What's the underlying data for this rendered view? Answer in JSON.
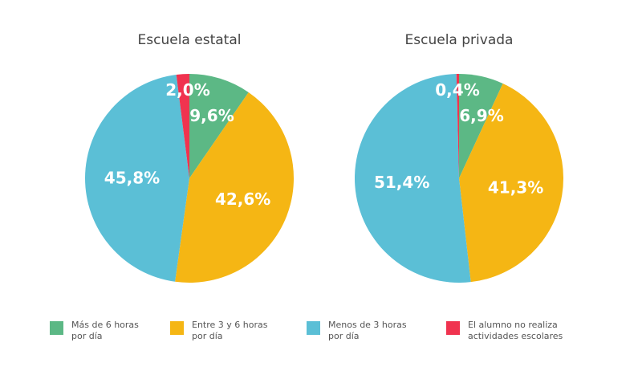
{
  "chart_data": {
    "type": "pie",
    "categories": [
      "Más de 6 horas por día",
      "Entre 3 y 6 horas por día",
      "Menos de 3 horas por día",
      "El alumno no realiza actividades escolares"
    ],
    "colors": [
      "#5cb885",
      "#f5b614",
      "#5bbfd6",
      "#f0334f"
    ],
    "charts": [
      {
        "title": "Escuela estatal",
        "values": [
          9.6,
          42.6,
          45.8,
          2.0
        ],
        "labels": [
          "9,6%",
          "42,6%",
          "45,8%",
          "2,0%"
        ]
      },
      {
        "title": "Escuela privada",
        "values": [
          6.9,
          41.3,
          51.4,
          0.4
        ],
        "labels": [
          "6,9%",
          "41,3%",
          "51,4%",
          "0,4%"
        ]
      }
    ],
    "legend": [
      {
        "line1": "Más de 6 horas",
        "line2": "por día"
      },
      {
        "line1": "Entre 3 y 6 horas",
        "line2": "por día"
      },
      {
        "line1": "Menos de 3 horas",
        "line2": "por día"
      },
      {
        "line1": "El alumno no realiza",
        "line2": "actividades escolares"
      }
    ],
    "legend_placement": "bottom"
  }
}
